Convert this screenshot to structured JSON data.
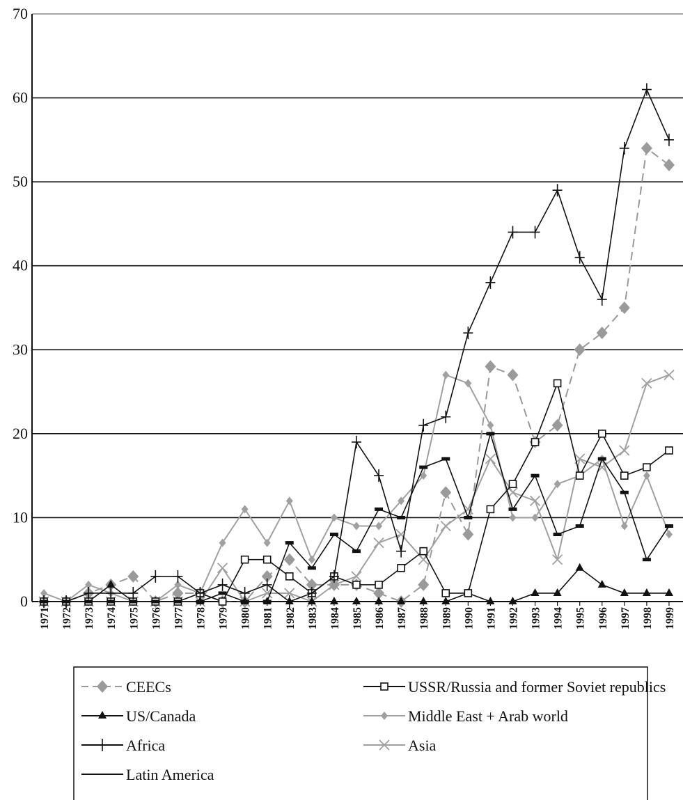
{
  "chart_data": {
    "type": "line",
    "title": "",
    "xlabel": "",
    "ylabel": "",
    "ylim": [
      0,
      70
    ],
    "yticks": [
      "0",
      "10",
      "20",
      "30",
      "40",
      "50",
      "60",
      "70"
    ],
    "grid": "horizontal",
    "legend_position": "bottom",
    "categories": [
      "1971",
      "1972",
      "1973",
      "1974",
      "1975",
      "1976",
      "1977",
      "1978",
      "1979",
      "1980",
      "1981",
      "1982",
      "1983",
      "1984",
      "1985",
      "1986",
      "1987",
      "1988",
      "1989",
      "1990",
      "1991",
      "1992",
      "1993",
      "1994",
      "1995",
      "1996",
      "1997",
      "1998",
      "1999"
    ],
    "series": [
      {
        "name": "CEECs",
        "color": "#9a9a9a",
        "dash": "dashed",
        "marker": "diamond",
        "values": [
          0,
          0,
          1,
          2,
          3,
          0,
          1,
          1,
          0,
          0,
          3,
          5,
          2,
          2,
          2,
          1,
          0,
          2,
          13,
          8,
          28,
          27,
          19,
          21,
          30,
          32,
          35,
          54,
          52
        ]
      },
      {
        "name": "USSR/Russia and former Soviet republics",
        "color": "#111111",
        "dash": "solid",
        "marker": "open-square",
        "values": [
          0,
          0,
          0,
          0,
          0,
          0,
          0,
          1,
          0,
          5,
          5,
          3,
          1,
          3,
          2,
          2,
          4,
          6,
          1,
          1,
          11,
          14,
          19,
          26,
          15,
          20,
          15,
          16,
          18
        ]
      },
      {
        "name": "US/Canada",
        "color": "#111111",
        "dash": "solid",
        "marker": "triangle",
        "values": [
          0,
          0,
          0,
          2,
          0,
          0,
          0,
          0,
          0,
          0,
          0,
          0,
          0,
          0,
          0,
          0,
          0,
          0,
          0,
          1,
          0,
          0,
          1,
          1,
          4,
          2,
          1,
          1,
          1
        ]
      },
      {
        "name": "Middle East + Arab world",
        "color": "#a0a0a0",
        "dash": "solid",
        "marker": "small-diamond",
        "values": [
          1,
          0,
          2,
          1,
          0,
          0,
          2,
          1,
          7,
          11,
          7,
          12,
          5,
          10,
          9,
          9,
          12,
          15,
          27,
          26,
          21,
          10,
          10,
          14,
          15,
          17,
          9,
          15,
          8
        ]
      },
      {
        "name": "Africa",
        "color": "#111111",
        "dash": "solid",
        "marker": "plus",
        "values": [
          0,
          0,
          1,
          1,
          1,
          3,
          3,
          1,
          2,
          1,
          2,
          0,
          1,
          3,
          19,
          15,
          6,
          21,
          22,
          32,
          38,
          44,
          44,
          49,
          41,
          36,
          54,
          61,
          55
        ]
      },
      {
        "name": "Asia",
        "color": "#a0a0a0",
        "dash": "solid",
        "marker": "x",
        "values": [
          0,
          0,
          0,
          0,
          0,
          0,
          0,
          0,
          4,
          0,
          1,
          1,
          0,
          2,
          3,
          7,
          8,
          5,
          9,
          11,
          17,
          13,
          12,
          5,
          17,
          16,
          18,
          26,
          27
        ]
      },
      {
        "name": "Latin America",
        "color": "#111111",
        "dash": "solid",
        "marker": "dash",
        "values": [
          0,
          0,
          0,
          0,
          0,
          0,
          0,
          0,
          1,
          0,
          0,
          7,
          4,
          8,
          6,
          11,
          10,
          16,
          17,
          10,
          20,
          11,
          15,
          8,
          9,
          17,
          13,
          5,
          9
        ]
      }
    ]
  }
}
